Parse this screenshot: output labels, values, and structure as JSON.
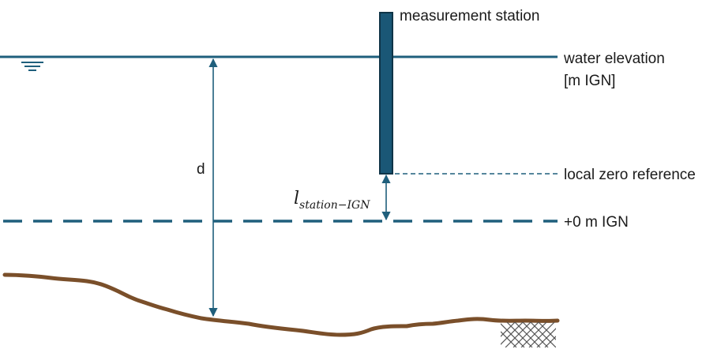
{
  "labels": {
    "station": "measurement station",
    "water_line1": "water elevation",
    "water_line2": "[m IGN]",
    "local_zero": "local zero reference",
    "zero_ign": "+0 m IGN",
    "depth": "d",
    "offset_main": "l",
    "offset_sub": "station−IGN"
  },
  "colors": {
    "water_line": "#1f5f7c",
    "station_fill": "#1a5776",
    "station_stroke": "#0f3447",
    "riverbed": "#7a4f2a",
    "dimension": "#1f5f7c",
    "hatch": "#555555"
  }
}
